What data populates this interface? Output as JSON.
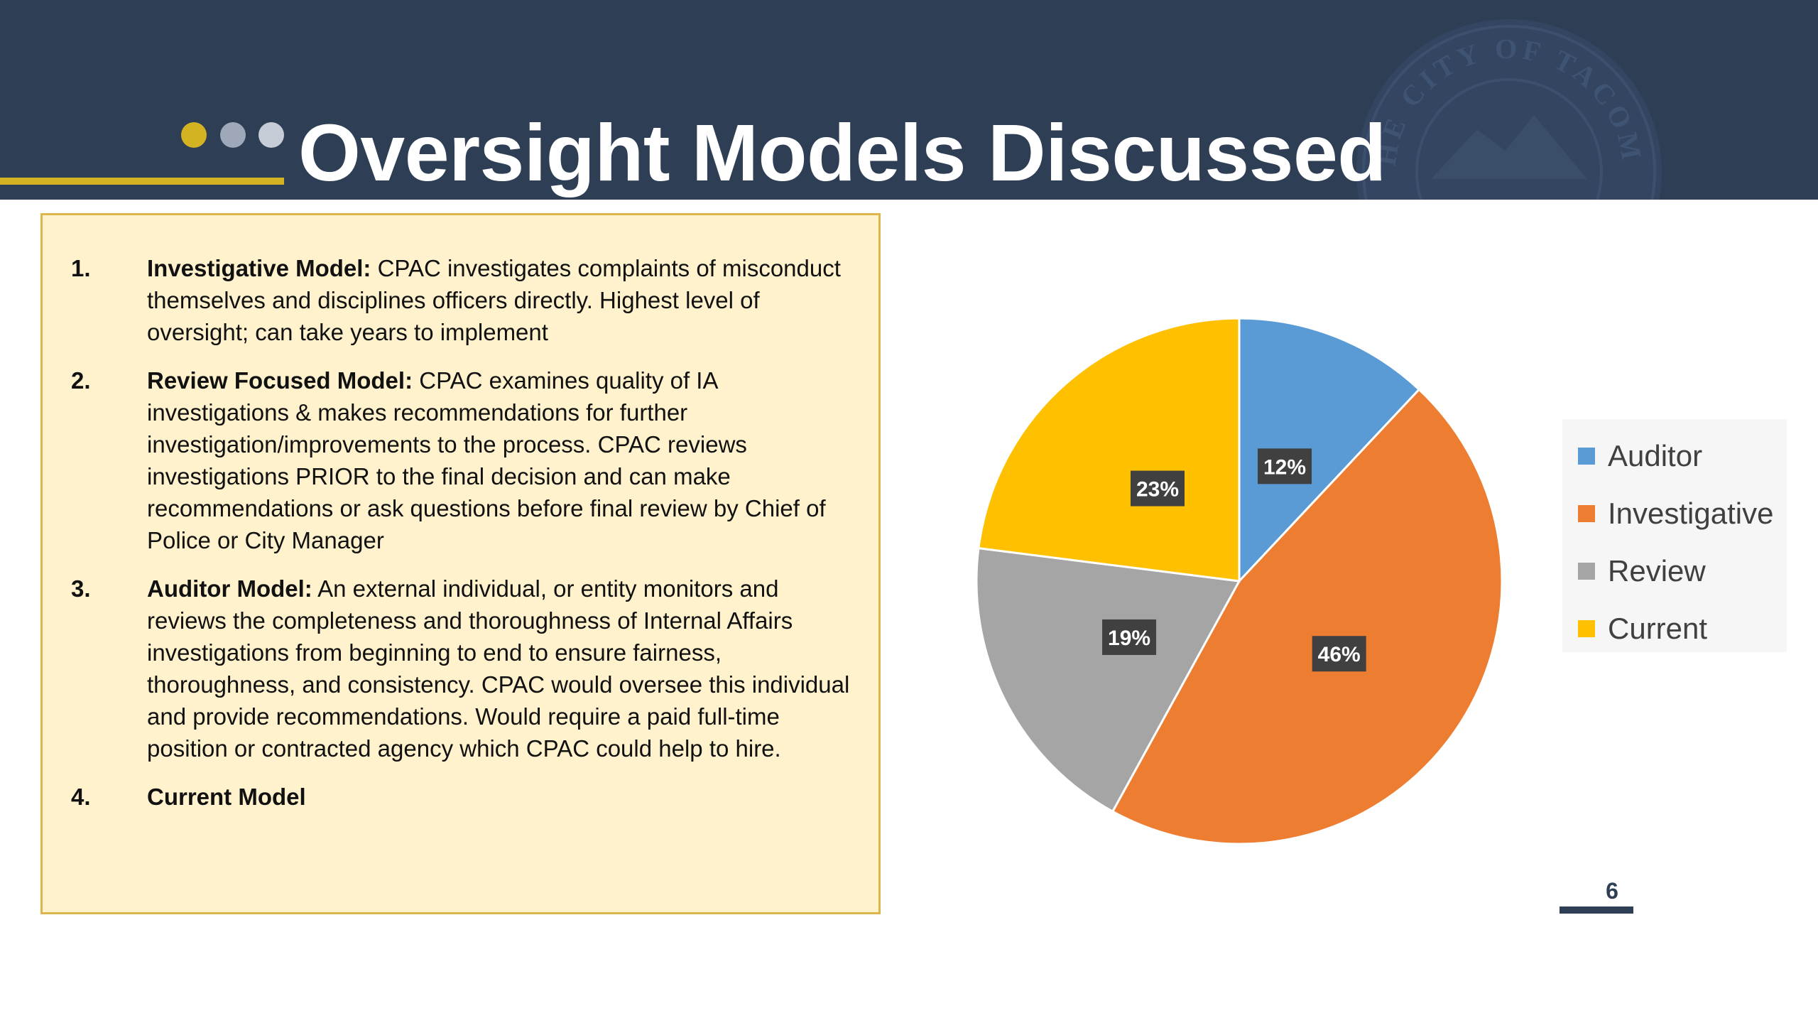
{
  "slide": {
    "title": "Oversight Models Discussed",
    "page_number": "6",
    "seal_text": "THE CITY OF TACOMA",
    "colors": {
      "header_bg": "#2d3e55",
      "accent_gold": "#d4b322",
      "dot_gray": "#9fa8b8",
      "box_fill": "#fff2cc",
      "box_border": "#dcb64a"
    }
  },
  "models": [
    {
      "num": "1.",
      "lead": "Investigative Model:",
      "text": " CPAC investigates complaints of misconduct themselves and disciplines officers directly. Highest level of oversight; can take years to implement"
    },
    {
      "num": "2.",
      "lead": "Review Focused Model:",
      "text": " CPAC examines quality of IA investigations & makes recommendations for further investigation/improvements to the process. CPAC reviews investigations PRIOR to the final decision and can make recommendations or ask questions before final review by Chief of Police or City Manager"
    },
    {
      "num": "3.",
      "lead": "Auditor Model:",
      "text": " An external individual, or entity monitors and reviews the completeness and thoroughness of Internal Affairs investigations from beginning to end to ensure fairness, thoroughness, and consistency. CPAC would oversee this individual and provide recommendations. Would require a paid full-time position or contracted agency which CPAC could help to hire."
    },
    {
      "num": "4.",
      "lead": "Current Model",
      "text": ""
    }
  ],
  "chart_data": {
    "type": "pie",
    "title": "",
    "legend_position": "right",
    "slices": [
      {
        "label": "Auditor",
        "value": 12,
        "display": "12%",
        "color": "#5b9bd5"
      },
      {
        "label": "Investigative",
        "value": 46,
        "display": "46%",
        "color": "#ed7d31"
      },
      {
        "label": "Review",
        "value": 19,
        "display": "19%",
        "color": "#a5a5a5"
      },
      {
        "label": "Current",
        "value": 23,
        "display": "23%",
        "color": "#ffc000"
      }
    ]
  }
}
